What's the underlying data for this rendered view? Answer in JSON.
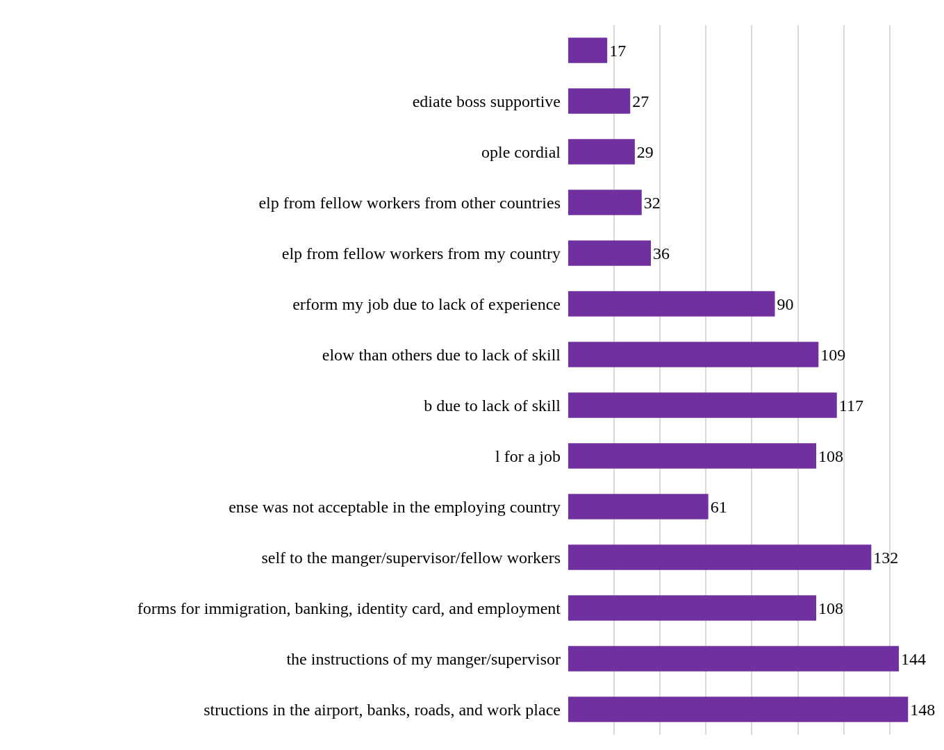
{
  "chart_data": {
    "type": "bar",
    "orientation": "horizontal",
    "categories": [
      null,
      "ediate boss supportive",
      "ople cordial",
      "elp from fellow workers from other countries",
      "elp from fellow workers from my country",
      "erform my job due to lack of experience",
      "elow than others due to lack of skill",
      "b due to lack of skill",
      "l for a job",
      "ense was not acceptable in the employing country",
      "self to the manger/supervisor/fellow workers",
      "forms for immigration, banking, identity card, and employment",
      "the instructions of my manger/supervisor",
      "structions in the airport, banks, roads, and work place"
    ],
    "values": [
      17,
      27,
      29,
      32,
      36,
      90,
      109,
      117,
      108,
      61,
      132,
      108,
      144,
      148
    ],
    "color": "#7030a0",
    "data_labels": true,
    "grid": "x",
    "legend": false,
    "tick_labels": "y"
  }
}
